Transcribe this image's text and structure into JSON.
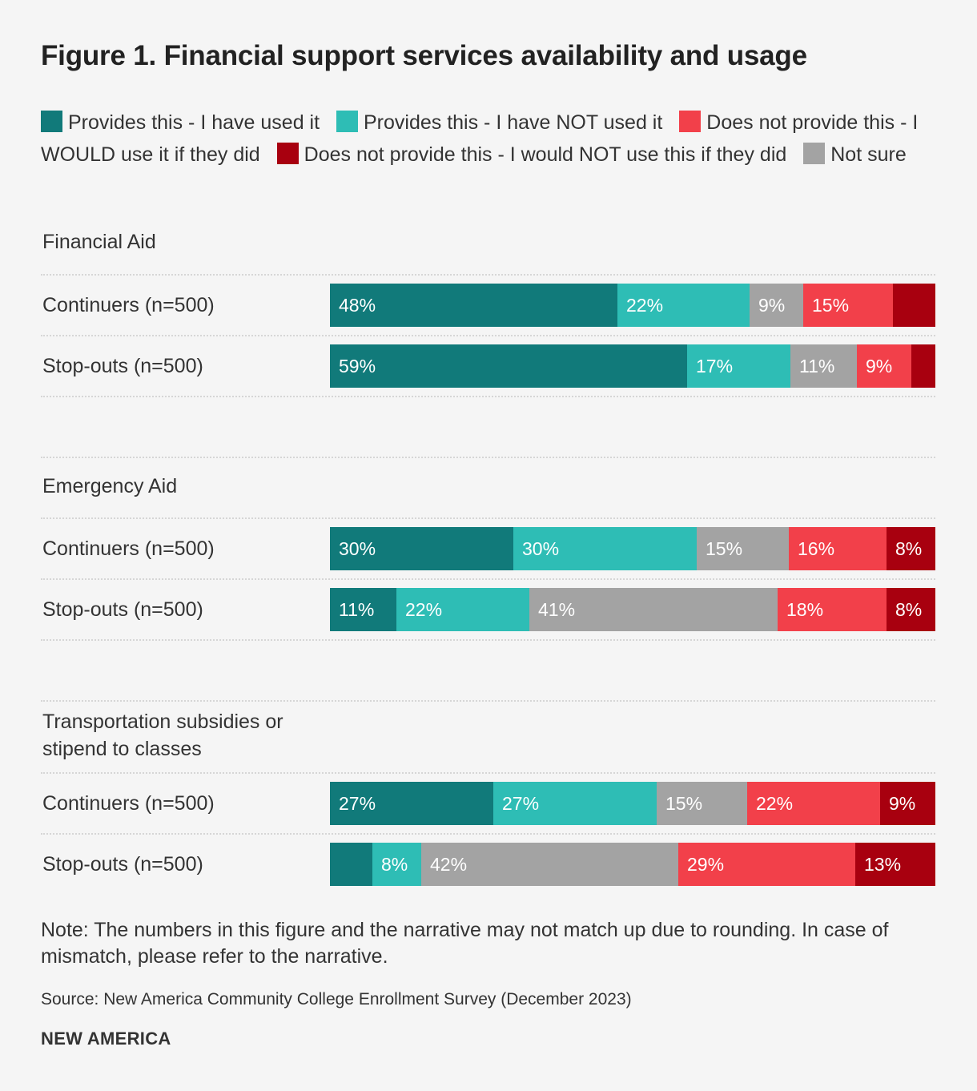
{
  "chart_data": {
    "type": "bar",
    "orientation": "horizontal",
    "stacked": true,
    "normalized": true,
    "title": "Figure 1. Financial support services availability and usage",
    "legend": [
      {
        "name": "Provides this - I have used it",
        "color": "#117a7a"
      },
      {
        "name": "Provides this - I have NOT used it",
        "color": "#2ebdb5"
      },
      {
        "name": "Does not provide this - I WOULD use it if they did",
        "color": "#f2404a"
      },
      {
        "name": "Does not provide this - I would NOT use this if they did",
        "color": "#a8000f"
      },
      {
        "name": "Not sure",
        "color": "#a3a3a3"
      }
    ],
    "segment_order": [
      0,
      1,
      4,
      2,
      3
    ],
    "groups": [
      {
        "name": "Financial Aid",
        "rows": [
          {
            "label": "Continuers (n=500)",
            "values": [
              48,
              22,
              15,
              7,
              9
            ],
            "labels": [
              "48%",
              "22%",
              "15%",
              "",
              "9%"
            ]
          },
          {
            "label": "Stop-outs (n=500)",
            "values": [
              59,
              17,
              9,
              4,
              11
            ],
            "labels": [
              "59%",
              "17%",
              "9%",
              "",
              "11%"
            ]
          }
        ]
      },
      {
        "name": "Emergency Aid",
        "rows": [
          {
            "label": "Continuers (n=500)",
            "values": [
              30,
              30,
              16,
              8,
              15
            ],
            "labels": [
              "30%",
              "30%",
              "16%",
              "8%",
              "15%"
            ]
          },
          {
            "label": "Stop-outs (n=500)",
            "values": [
              11,
              22,
              18,
              8,
              41
            ],
            "labels": [
              "11%",
              "22%",
              "18%",
              "8%",
              "41%"
            ]
          }
        ]
      },
      {
        "name": "Transportation subsidies or stipend to classes",
        "rows": [
          {
            "label": "Continuers (n=500)",
            "values": [
              27,
              27,
              22,
              9,
              15
            ],
            "labels": [
              "27%",
              "27%",
              "22%",
              "9%",
              "15%"
            ]
          },
          {
            "label": "Stop-outs (n=500)",
            "values": [
              7,
              8,
              29,
              13,
              42
            ],
            "labels": [
              "",
              "8%",
              "29%",
              "13%",
              "42%"
            ]
          }
        ]
      }
    ]
  },
  "footer": {
    "note": "Note: The numbers in this figure and the narrative may not match up due to rounding. In case of mismatch, please refer to the narrative.",
    "source": "Source: New America Community College Enrollment Survey (December 2023)",
    "brand": "NEW AMERICA"
  }
}
